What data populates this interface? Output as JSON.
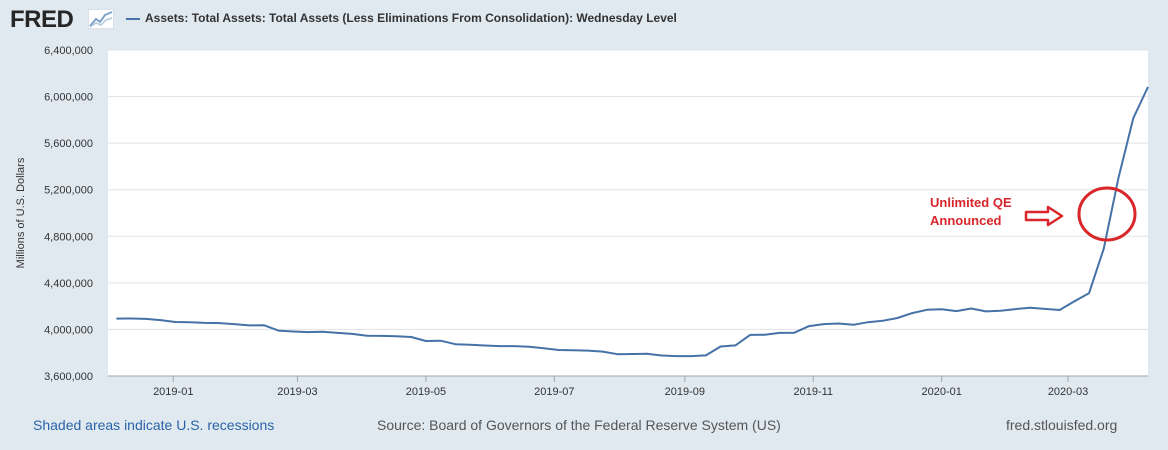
{
  "header": {
    "logo_text": "FRED",
    "legend_label": "Assets: Total Assets: Total Assets (Less Eliminations From Consolidation): Wednesday Level",
    "legend_color": "#4572a7"
  },
  "footer": {
    "recession_note": "Shaded areas indicate U.S. recessions",
    "source": "Source: Board of Governors of the Federal Reserve System (US)",
    "site": "fred.stlouisfed.org"
  },
  "annotation": {
    "line1": "Unlimited QE",
    "line2": "Announced",
    "color": "#d9262b"
  },
  "chart_data": {
    "type": "line",
    "title": "",
    "xlabel": "",
    "ylabel": "Millions of U.S. Dollars",
    "ylim": [
      3600000,
      6400000
    ],
    "yticks": [
      3600000,
      4000000,
      4400000,
      4800000,
      5200000,
      5600000,
      6000000,
      6400000
    ],
    "ytick_labels": [
      "3,600,000",
      "4,000,000",
      "4,400,000",
      "4,800,000",
      "5,200,000",
      "5,600,000",
      "6,000,000",
      "6,400,000"
    ],
    "xlim": [
      "2018-12-01",
      "2020-04-08"
    ],
    "xticks": [
      "2019-01-01",
      "2019-03-01",
      "2019-05-01",
      "2019-07-01",
      "2019-09-01",
      "2019-11-01",
      "2020-01-01",
      "2020-03-01"
    ],
    "xtick_labels": [
      "2019-01",
      "2019-03",
      "2019-05",
      "2019-07",
      "2019-09",
      "2019-11",
      "2020-01",
      "2020-03"
    ],
    "grid": true,
    "series": [
      {
        "name": "Assets: Total Assets: Total Assets (Less Eliminations From Consolidation): Wednesday Level",
        "color": "#4572a7",
        "x": [
          "2018-12-05",
          "2018-12-12",
          "2018-12-19",
          "2018-12-26",
          "2019-01-02",
          "2019-01-09",
          "2019-01-16",
          "2019-01-23",
          "2019-01-30",
          "2019-02-06",
          "2019-02-13",
          "2019-02-20",
          "2019-02-27",
          "2019-03-06",
          "2019-03-13",
          "2019-03-20",
          "2019-03-27",
          "2019-04-03",
          "2019-04-10",
          "2019-04-17",
          "2019-04-24",
          "2019-05-01",
          "2019-05-08",
          "2019-05-15",
          "2019-05-22",
          "2019-05-29",
          "2019-06-05",
          "2019-06-12",
          "2019-06-19",
          "2019-06-26",
          "2019-07-03",
          "2019-07-10",
          "2019-07-17",
          "2019-07-24",
          "2019-07-31",
          "2019-08-07",
          "2019-08-14",
          "2019-08-21",
          "2019-08-28",
          "2019-09-04",
          "2019-09-11",
          "2019-09-18",
          "2019-09-25",
          "2019-10-02",
          "2019-10-09",
          "2019-10-16",
          "2019-10-23",
          "2019-10-30",
          "2019-11-06",
          "2019-11-13",
          "2019-11-20",
          "2019-11-27",
          "2019-12-04",
          "2019-12-11",
          "2019-12-18",
          "2019-12-25",
          "2020-01-01",
          "2020-01-08",
          "2020-01-15",
          "2020-01-22",
          "2020-01-29",
          "2020-02-05",
          "2020-02-12",
          "2020-02-19",
          "2020-02-26",
          "2020-03-04",
          "2020-03-11",
          "2020-03-18",
          "2020-03-25",
          "2020-04-01",
          "2020-04-08"
        ],
        "values": [
          4093000,
          4094000,
          4090000,
          4080000,
          4064000,
          4062000,
          4056000,
          4054000,
          4046000,
          4035000,
          4036000,
          3990000,
          3982000,
          3977000,
          3980000,
          3970000,
          3962000,
          3946000,
          3944000,
          3941000,
          3935000,
          3901000,
          3903000,
          3873000,
          3869000,
          3862000,
          3857000,
          3857000,
          3852000,
          3838000,
          3823000,
          3822000,
          3818000,
          3810000,
          3787000,
          3789000,
          3791000,
          3776000,
          3771000,
          3771000,
          3777000,
          3853000,
          3863000,
          3953000,
          3955000,
          3970000,
          3972000,
          4029000,
          4046000,
          4051000,
          4040000,
          4062000,
          4074000,
          4098000,
          4140000,
          4169000,
          4173000,
          4157000,
          4180000,
          4155000,
          4160000,
          4175000,
          4187000,
          4176000,
          4167000,
          4241000,
          4312000,
          4695000,
          5303000,
          5814000,
          6083000
        ]
      }
    ]
  }
}
